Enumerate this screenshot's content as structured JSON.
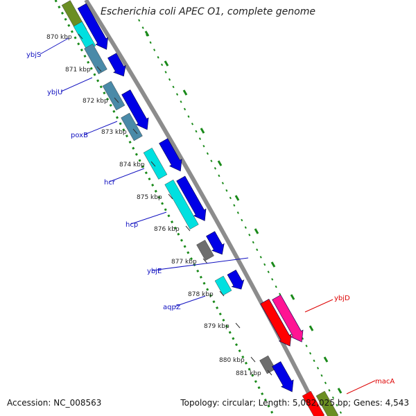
{
  "title": "Escherichia coli APEC O1, complete genome",
  "accession": "Accession: NC_008563",
  "topology": "Topology: circular; Length: 5,082,025 bp; Genes: 4,543",
  "ticks": [
    "870 kbp",
    "871 kbp",
    "872 kbp",
    "873 kbp",
    "874 kbp",
    "875 kbp",
    "876 kbp",
    "877 kbp",
    "878 kbp",
    "879 kbp",
    "880 kbp",
    "881 kbp"
  ],
  "genes_left": [
    "ybjS",
    "ybjU",
    "poxB",
    "hcr",
    "hcp",
    "ybjE",
    "aqpZ"
  ],
  "genes_right": [
    "ybjD",
    "macA"
  ],
  "colors": {
    "backbone": "#8c8c8c",
    "forward": "#0000e6",
    "cyan": "#00e0e0",
    "steel": "#4a8aa8",
    "olive": "#6b8e23",
    "gray": "#6e6e6e",
    "red": "#ff0000",
    "pink": "#ff1493",
    "plot": "#1a8a1a",
    "left_label": "#1010c0",
    "right_label": "#dd0000"
  }
}
